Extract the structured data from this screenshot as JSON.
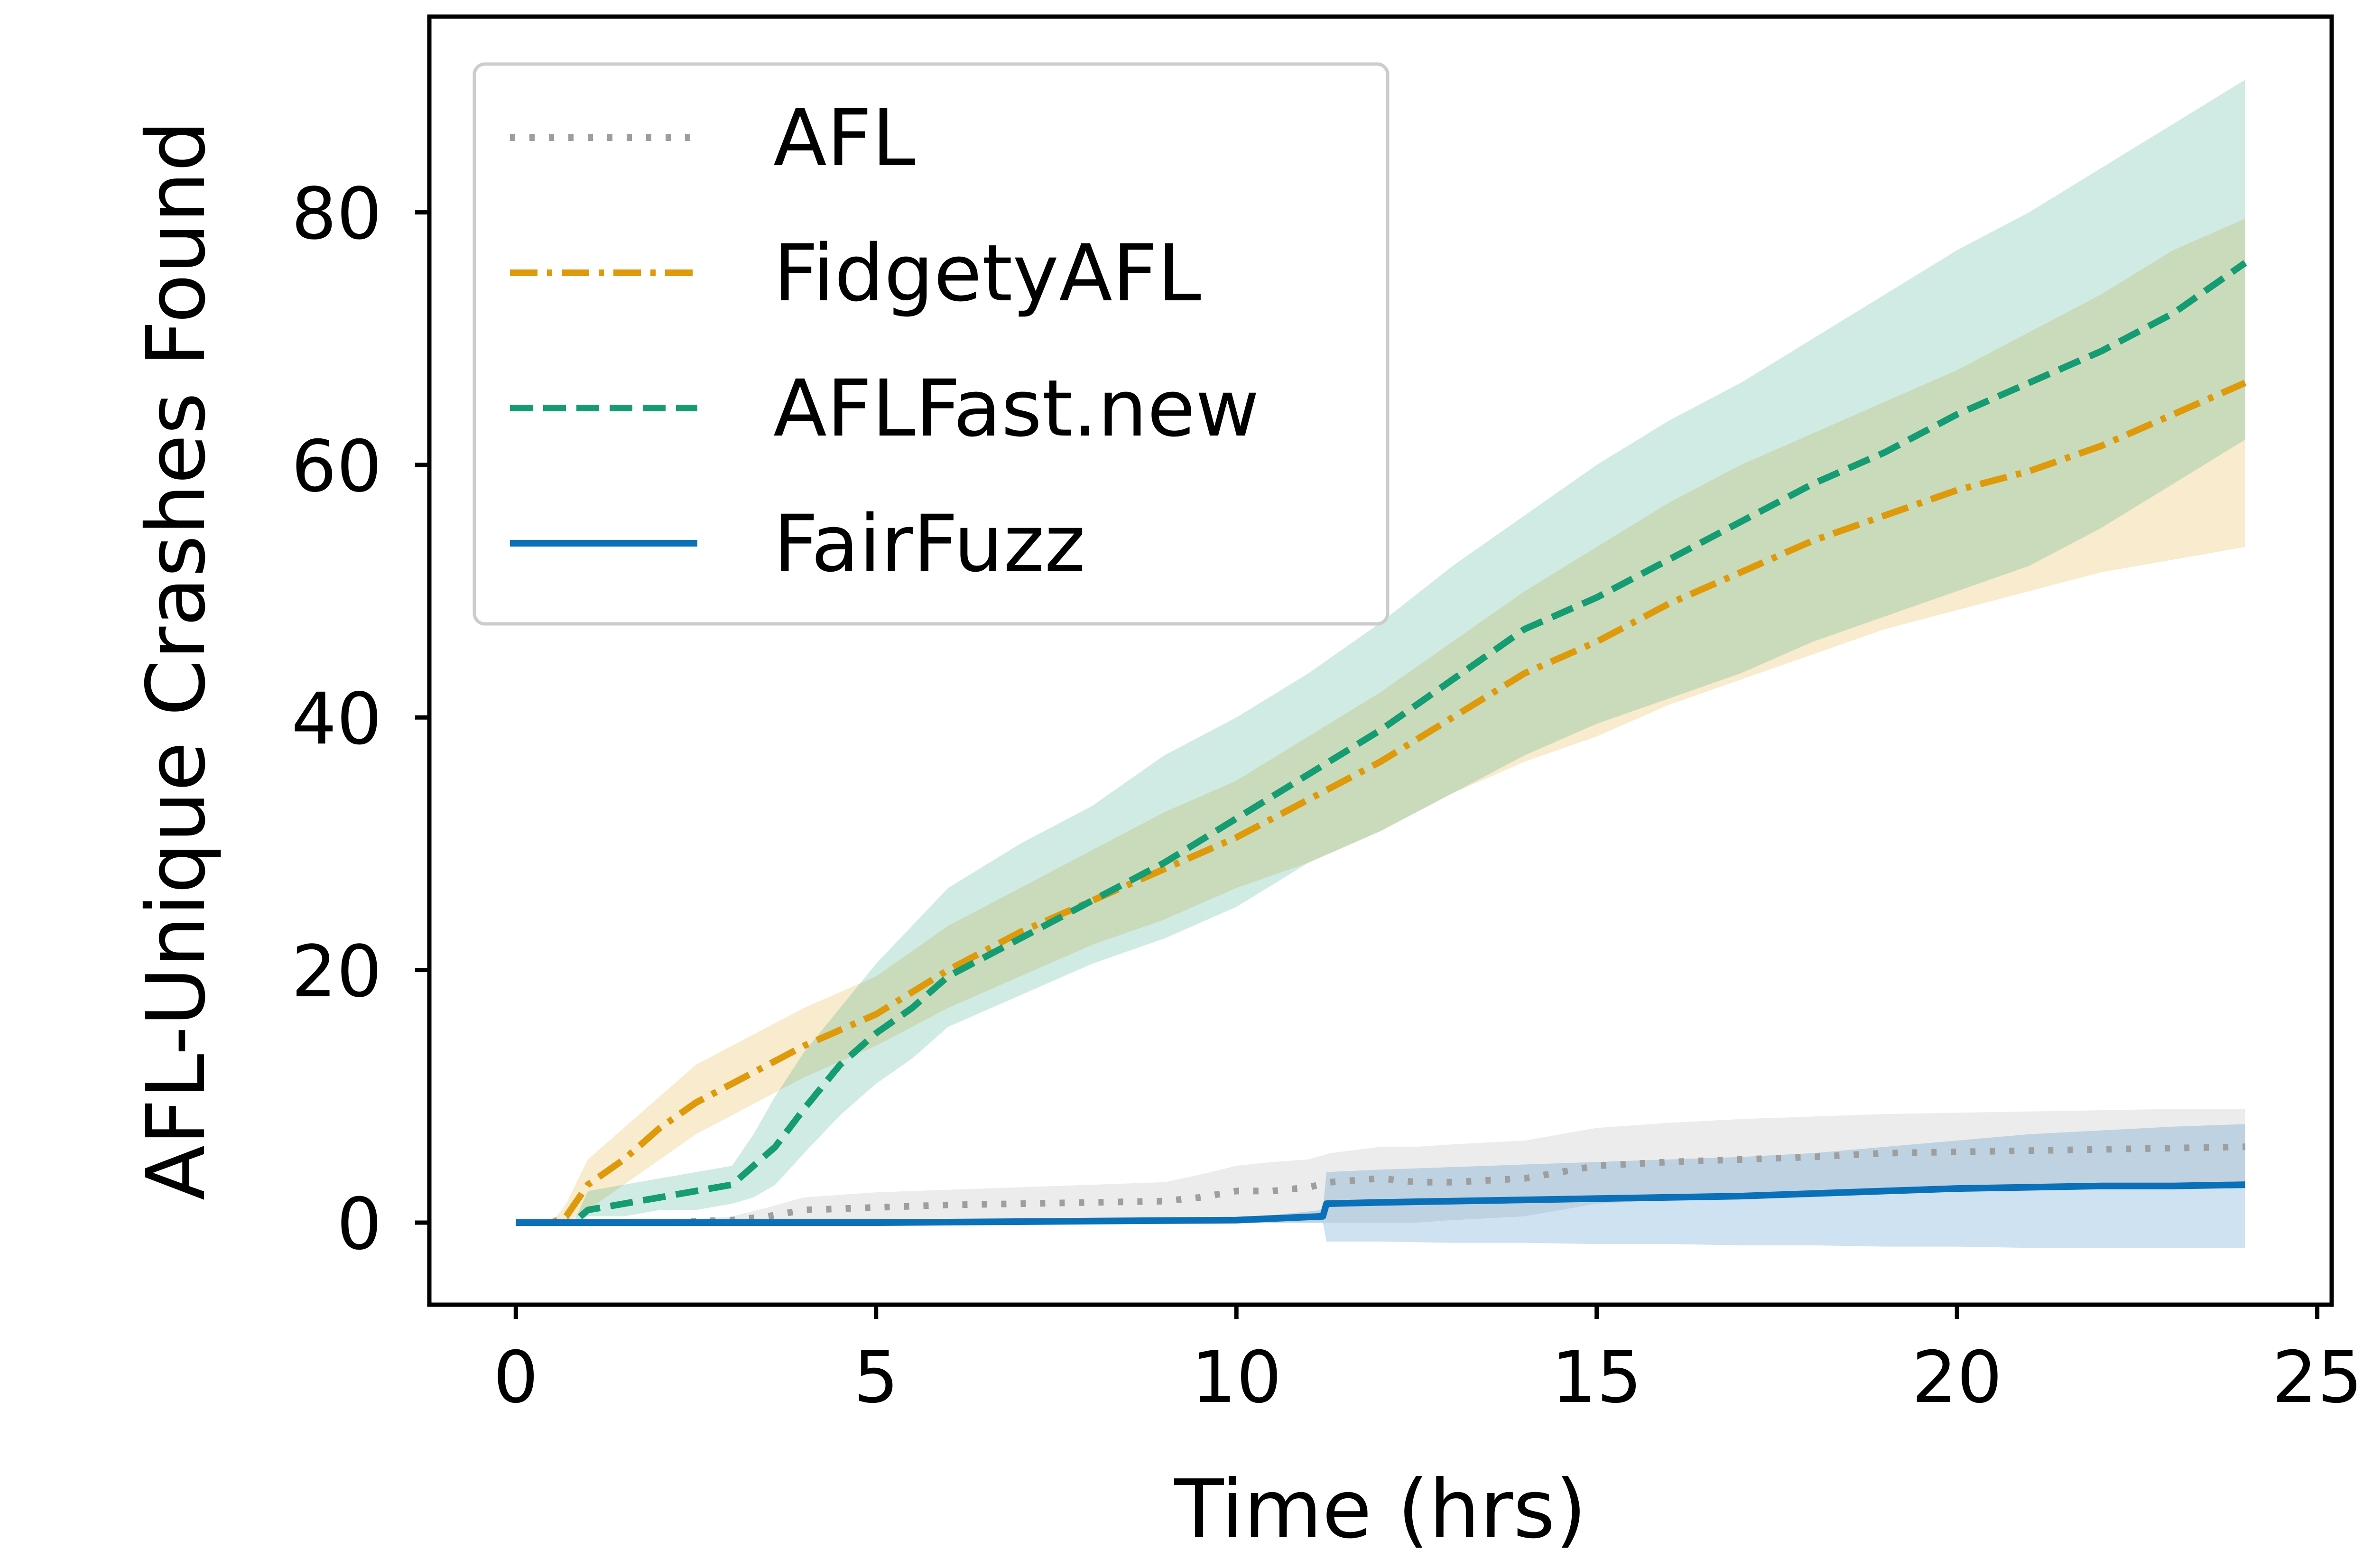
{
  "chart_data": {
    "type": "line",
    "title": "",
    "xlabel": "Time (hrs)",
    "ylabel": "AFL-Unique Crashes Found",
    "xlim": [
      -1.2,
      25.2
    ],
    "ylim": [
      -6.5,
      95.5
    ],
    "xticks": [
      0,
      5,
      10,
      15,
      20,
      25
    ],
    "yticks": [
      0,
      20,
      40,
      60,
      80
    ],
    "xtick_labels": [
      "0",
      "5",
      "10",
      "15",
      "20",
      "25"
    ],
    "ytick_labels": [
      "0",
      "20",
      "40",
      "60",
      "80"
    ],
    "grid": false,
    "legend_position": "top-left",
    "series": [
      {
        "name": "AFL",
        "color": "#9e9e9e",
        "style": "dotted",
        "x": [
          0,
          1,
          2,
          3,
          3.5,
          4,
          5,
          6,
          7,
          8,
          9,
          9.5,
          10,
          10.5,
          11,
          11.3,
          12,
          12.5,
          13,
          14,
          14.5,
          15,
          16,
          17,
          18,
          19,
          20,
          21,
          22,
          23,
          24
        ],
        "y": [
          0,
          0,
          0,
          0.2,
          0.5,
          1,
          1.2,
          1.4,
          1.5,
          1.6,
          1.7,
          2,
          2.5,
          2.5,
          2.8,
          3.2,
          3.5,
          3.2,
          3.2,
          3.5,
          4,
          4.5,
          4.8,
          5,
          5.2,
          5.5,
          5.6,
          5.7,
          5.8,
          5.9,
          6
        ],
        "lower": [
          0,
          0,
          0,
          0,
          0,
          0,
          0,
          0,
          0,
          0,
          0,
          0,
          0,
          0,
          0,
          0,
          0,
          0,
          0.2,
          0.5,
          1,
          1.5,
          1.8,
          2,
          2.2,
          2.5,
          2.6,
          2.7,
          2.8,
          2.9,
          3
        ],
        "upper": [
          0,
          0,
          0,
          0.5,
          1.2,
          2,
          2.4,
          2.6,
          2.8,
          3,
          3.2,
          3.8,
          4.5,
          4.8,
          5,
          5.5,
          6,
          6,
          6.2,
          6.5,
          7,
          7.5,
          7.9,
          8.2,
          8.4,
          8.6,
          8.7,
          8.8,
          8.9,
          9,
          9
        ]
      },
      {
        "name": "FidgetyAFL",
        "color": "#de9a0b",
        "style": "dashdot",
        "x": [
          0,
          0.5,
          0.7,
          1,
          1.5,
          2,
          2.5,
          3,
          3.5,
          4,
          5,
          6,
          7,
          8,
          9,
          10,
          11,
          12,
          13,
          14,
          15,
          16,
          17,
          18,
          19,
          20,
          21,
          22,
          23,
          24
        ],
        "y": [
          0,
          0,
          0.5,
          3,
          5,
          7.5,
          9.5,
          11,
          12.5,
          14,
          16.5,
          20,
          23,
          25.5,
          28,
          30.5,
          33.5,
          36.5,
          40,
          43.5,
          46,
          49,
          51.5,
          54,
          56,
          58,
          59.5,
          61.5,
          64,
          66.5
        ],
        "lower": [
          0,
          0,
          0,
          1,
          3,
          5,
          7,
          8.5,
          10,
          11.5,
          14,
          17,
          19.5,
          22,
          24,
          26.5,
          28.5,
          31,
          34,
          36.5,
          38.5,
          41,
          43,
          45,
          47,
          48.5,
          50,
          51.5,
          52.5,
          53.5
        ],
        "upper": [
          0,
          0,
          1.5,
          5,
          7.5,
          10,
          12.5,
          14,
          15.5,
          17,
          19.5,
          23.5,
          26.5,
          29.5,
          32.5,
          35,
          38.5,
          42,
          46,
          50,
          53.5,
          57,
          60,
          62.5,
          65,
          67.5,
          70.5,
          73.5,
          77,
          79.5
        ]
      },
      {
        "name": "AFLFast.new",
        "color": "#169c73",
        "style": "dashed",
        "x": [
          0,
          0.8,
          1,
          1.5,
          2,
          2.5,
          3,
          3.3,
          3.6,
          4,
          4.5,
          5,
          5.5,
          6,
          7,
          8,
          9,
          10,
          11,
          12,
          13,
          14,
          15,
          16,
          17,
          18,
          19,
          20,
          21,
          22,
          23,
          24
        ],
        "y": [
          0,
          0,
          1,
          1.5,
          2,
          2.5,
          3,
          4.5,
          6,
          9,
          12.5,
          15,
          17,
          19.5,
          22.5,
          25.5,
          28.5,
          32,
          35.5,
          39,
          43,
          47,
          49.5,
          52.5,
          55.5,
          58.5,
          61,
          64,
          66.5,
          69,
          72,
          76
        ],
        "lower": [
          0,
          0,
          0.5,
          0.5,
          1,
          1,
          1.5,
          2,
          3,
          5.5,
          8.5,
          11,
          13,
          15.5,
          18,
          20.5,
          22.5,
          25,
          28.5,
          31,
          34,
          37,
          39.5,
          41.5,
          43.5,
          46,
          48,
          50,
          52,
          55,
          58.5,
          62
        ],
        "upper": [
          0,
          0,
          2.5,
          3,
          3.5,
          4,
          4.5,
          7,
          10,
          13.5,
          17,
          20.5,
          23.5,
          26.5,
          30,
          33,
          37,
          40,
          43.5,
          47.5,
          52,
          56,
          60,
          63.5,
          66.5,
          70,
          73.5,
          77,
          80,
          83.5,
          87,
          90.5
        ]
      },
      {
        "name": "FairFuzz",
        "color": "#0a70b8",
        "style": "solid",
        "x": [
          0,
          5,
          10,
          11.2,
          11.25,
          12,
          13,
          14,
          15,
          16,
          17,
          18,
          19,
          20,
          21,
          22,
          23,
          24
        ],
        "y": [
          0,
          0,
          0.2,
          0.5,
          1.5,
          1.6,
          1.7,
          1.8,
          1.9,
          2,
          2.1,
          2.3,
          2.5,
          2.7,
          2.8,
          2.9,
          2.9,
          3
        ],
        "lower": [
          0,
          0,
          0,
          0,
          -1.5,
          -1.5,
          -1.6,
          -1.6,
          -1.7,
          -1.7,
          -1.8,
          -1.8,
          -1.9,
          -1.9,
          -2,
          -2,
          -2,
          -2
        ],
        "upper": [
          0,
          0,
          0.3,
          1,
          4,
          4.2,
          4.4,
          4.6,
          4.8,
          5,
          5.2,
          5.5,
          6,
          6.5,
          7,
          7.3,
          7.6,
          7.8
        ]
      }
    ]
  }
}
